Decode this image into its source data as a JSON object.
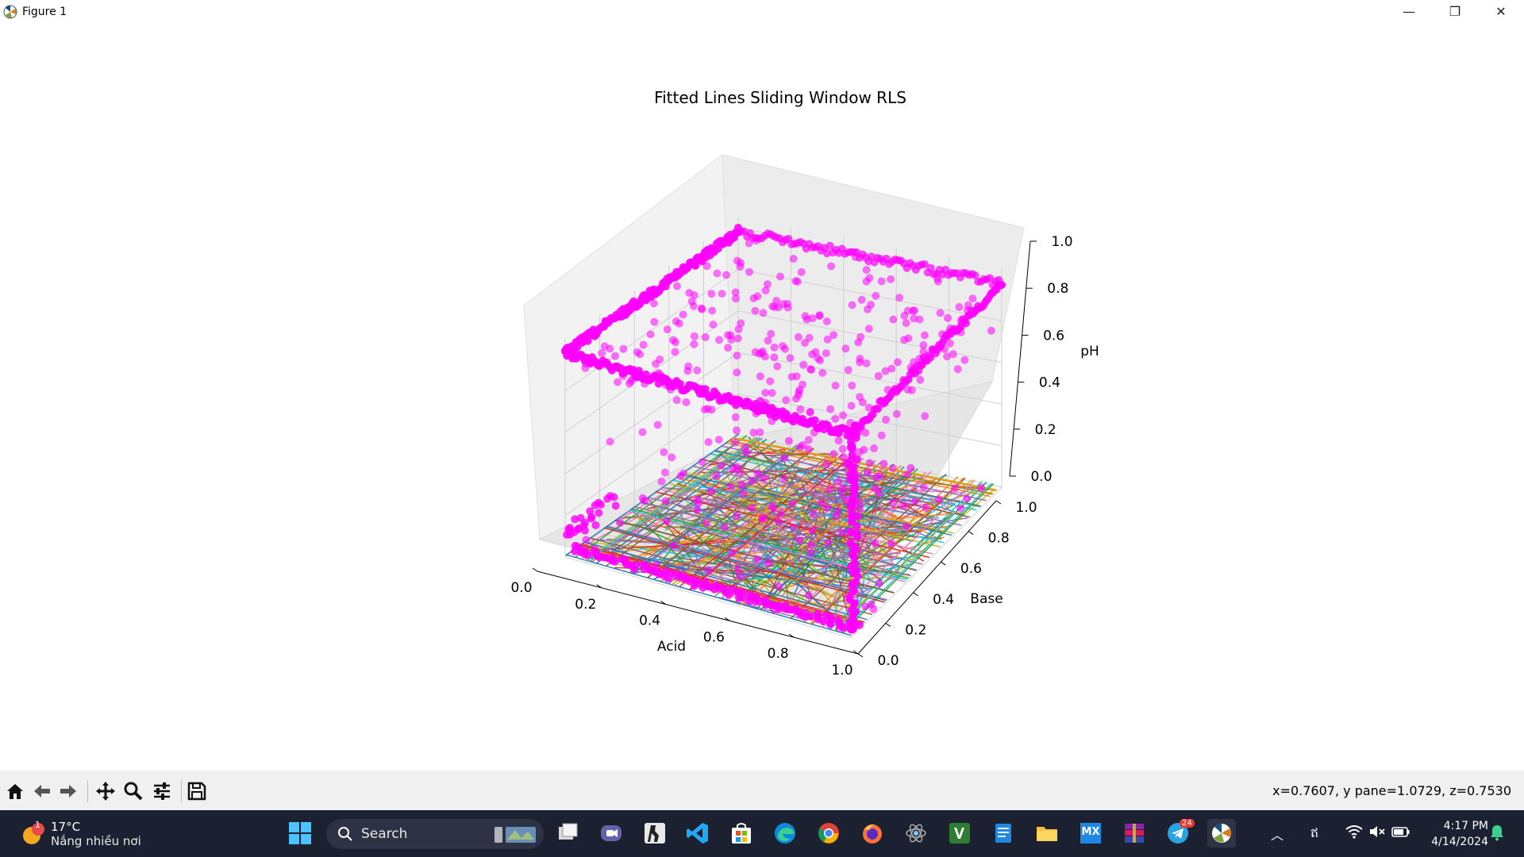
{
  "window": {
    "title": "Figure 1",
    "minimize_glyph": "—",
    "restore_glyph": "❐",
    "close_glyph": "✕"
  },
  "chart_data": {
    "type": "scatter",
    "title": "Fitted Lines Sliding Window RLS",
    "xlabel": "Acid",
    "ylabel": "Base",
    "zlabel": "pH",
    "xticks": [
      "0.0",
      "0.2",
      "0.4",
      "0.6",
      "0.8",
      "1.0"
    ],
    "yticks": [
      "0.0",
      "0.2",
      "0.4",
      "0.6",
      "0.8",
      "1.0"
    ],
    "zticks": [
      "0.0",
      "0.2",
      "0.4",
      "0.6",
      "0.8",
      "1.0"
    ],
    "xlim": [
      0,
      1
    ],
    "ylim": [
      0,
      1
    ],
    "zlim": [
      0,
      1
    ],
    "grid": true,
    "scatter_color": "#ff00ff",
    "line_colors": [
      "#1f77b4",
      "#ff7f0e",
      "#2ca02c",
      "#d62728",
      "#9467bd",
      "#8c564b",
      "#e377c2",
      "#7f7f7f",
      "#bcbd22",
      "#17becf"
    ],
    "series": [
      {
        "kind": "scatter",
        "description_values": "pH measurements: ~1.0 along acid-edge and base-edge walls, ~0.0 on the floor plane"
      },
      {
        "kind": "lines",
        "description_values": "fitted lines lying on the pH≈0 plane across the acid/base domain"
      }
    ]
  },
  "toolbar": {
    "icons": [
      "home-icon",
      "back-icon",
      "forward-icon",
      "pan-icon",
      "zoom-icon",
      "configure-icon",
      "save-icon"
    ],
    "coords_text": "x=0.7607, y pane=1.0729, z=0.7530"
  },
  "taskbar": {
    "weather_badge": "1",
    "weather_temp": "17°C",
    "weather_desc": "Nắng nhiều nơi",
    "search_label": "Search",
    "ime_label": "ឥ",
    "time": "4:17 PM",
    "date": "4/14/2024",
    "telegram_badge": "24",
    "mx_label": "MX"
  }
}
